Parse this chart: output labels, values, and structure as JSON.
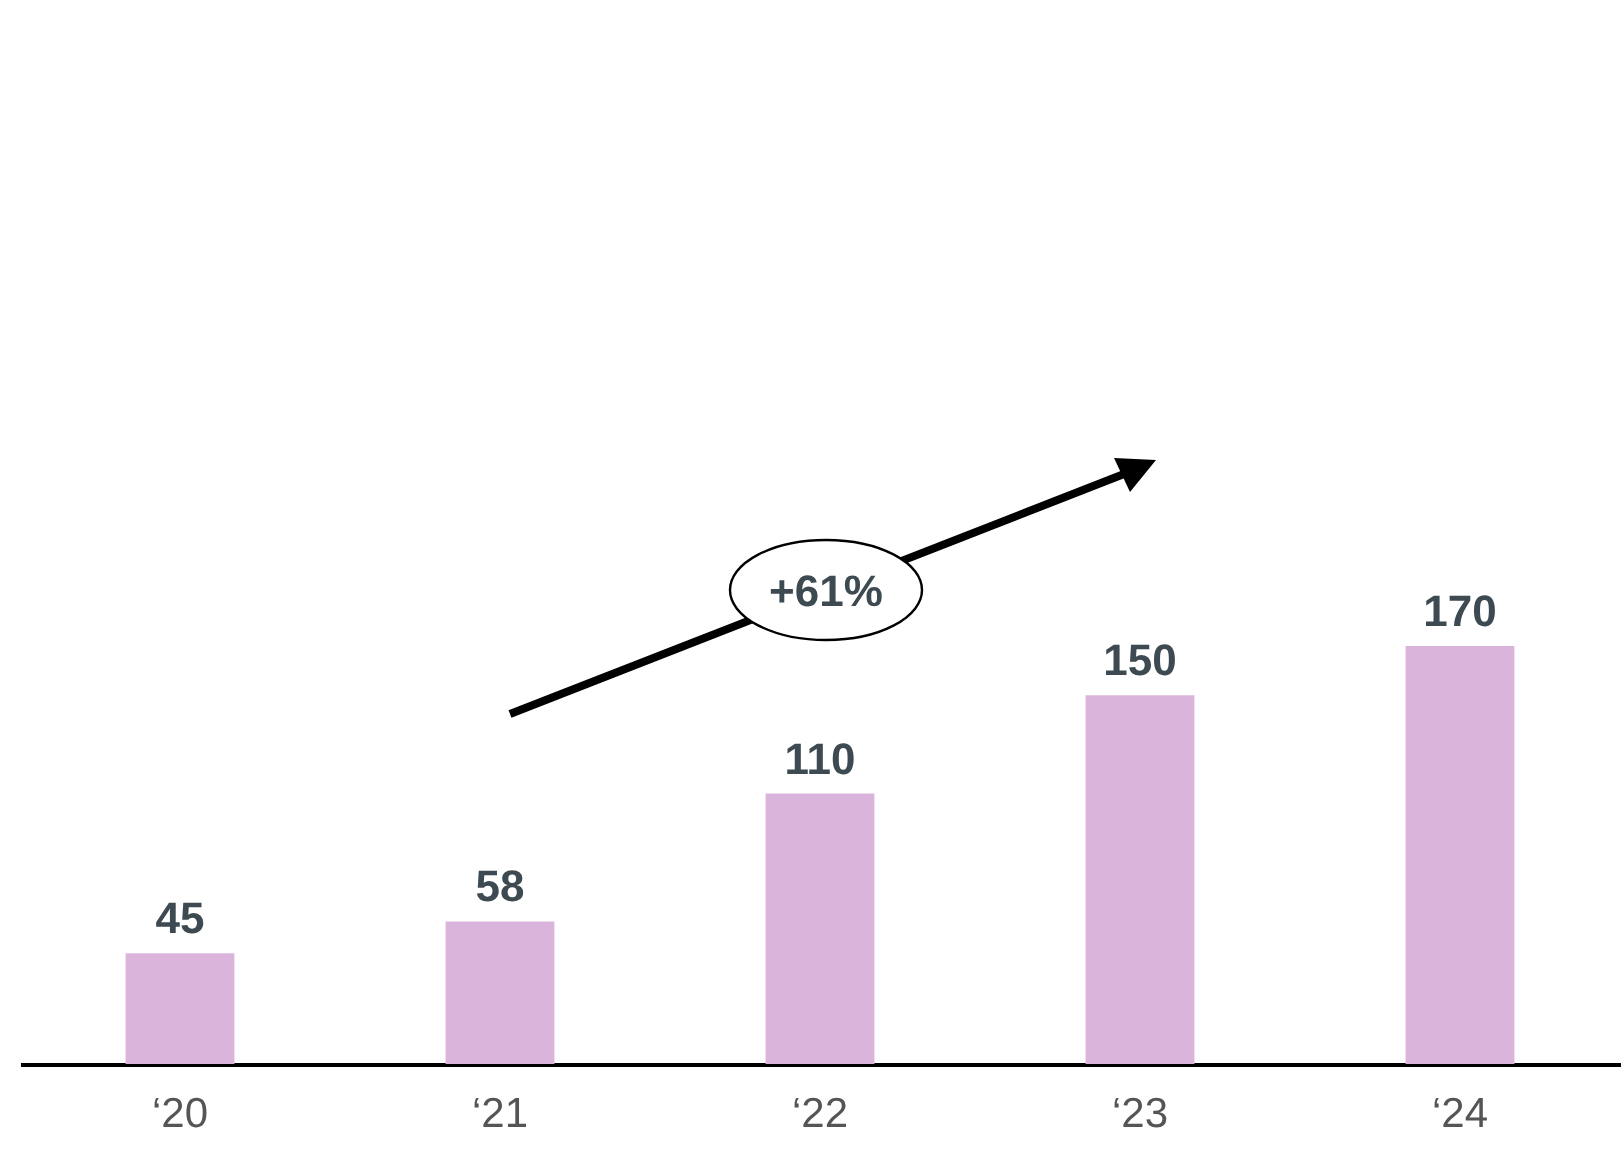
{
  "chart_data": {
    "type": "bar",
    "categories": [
      "‘20",
      "‘21",
      "‘22",
      "‘23",
      "‘24"
    ],
    "values": [
      45,
      58,
      110,
      150,
      170
    ],
    "color": "#dbb4db",
    "data_labels": true,
    "annotations": [
      "+61%"
    ]
  }
}
